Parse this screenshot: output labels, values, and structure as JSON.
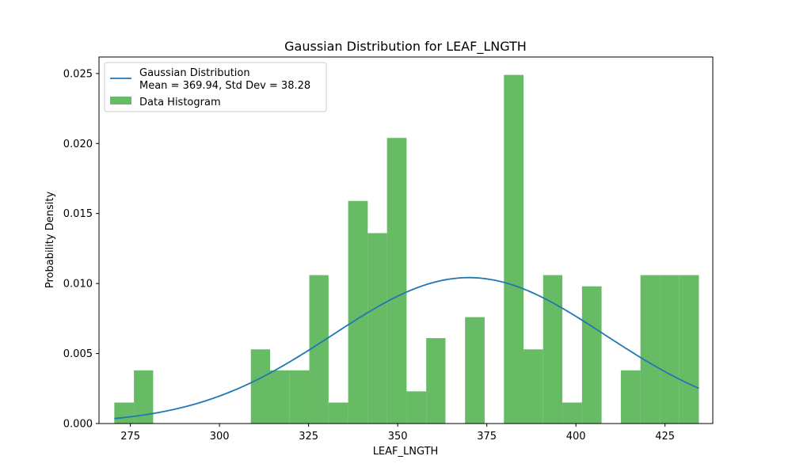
{
  "chart_data": {
    "type": "bar",
    "title": "Gaussian Distribution for LEAF_LNGTH",
    "xlabel": "LEAF_LNGTH",
    "ylabel": "Probability Density",
    "xlim": [
      266.2,
      438.4
    ],
    "ylim": [
      0,
      0.02618
    ],
    "xticks": [
      275,
      300,
      325,
      350,
      375,
      400,
      425
    ],
    "xtick_labels": [
      "275",
      "300",
      "325",
      "350",
      "375",
      "400",
      "425"
    ],
    "yticks": [
      0,
      0.005,
      0.01,
      0.015,
      0.02,
      0.025
    ],
    "ytick_labels": [
      "0.000",
      "0.005",
      "0.010",
      "0.015",
      "0.020",
      "0.025"
    ],
    "grid": false,
    "legend_position": "top-left",
    "legend": [
      {
        "kind": "line",
        "label_line1": "Gaussian Distribution",
        "label_line2": "Mean = 369.94, Std Dev = 38.28",
        "color": "#1f77b4"
      },
      {
        "kind": "patch",
        "label_line1": "Data Histogram",
        "color": "#4daf4a"
      }
    ],
    "histogram": {
      "name": "Data Histogram",
      "color": "#4daf4a",
      "opacity": 0.85,
      "bin_edges": [
        270.5,
        276.0,
        281.4,
        286.9,
        292.4,
        297.8,
        303.3,
        308.8,
        314.2,
        319.7,
        325.2,
        330.6,
        336.1,
        341.6,
        347.0,
        352.5,
        358.0,
        363.4,
        368.9,
        374.4,
        379.8,
        385.3,
        390.8,
        396.2,
        401.7,
        407.2,
        412.6,
        418.1,
        423.6,
        429.0,
        434.5
      ],
      "densities": [
        0.0015,
        0.0038,
        0,
        0,
        0,
        0,
        0,
        0.0053,
        0.0038,
        0.0038,
        0.0106,
        0.0015,
        0.0159,
        0.0136,
        0.0204,
        0.0023,
        0.0061,
        0,
        0.0076,
        0,
        0.0249,
        0.0053,
        0.0106,
        0.0015,
        0.0098,
        0,
        0.0038,
        0.0106,
        0.0106,
        0.0106
      ]
    },
    "gaussian": {
      "name": "Gaussian Distribution",
      "mean": 369.94,
      "std": 38.28,
      "x_start": 270.5,
      "x_end": 434.5,
      "color": "#1f77b4"
    }
  }
}
